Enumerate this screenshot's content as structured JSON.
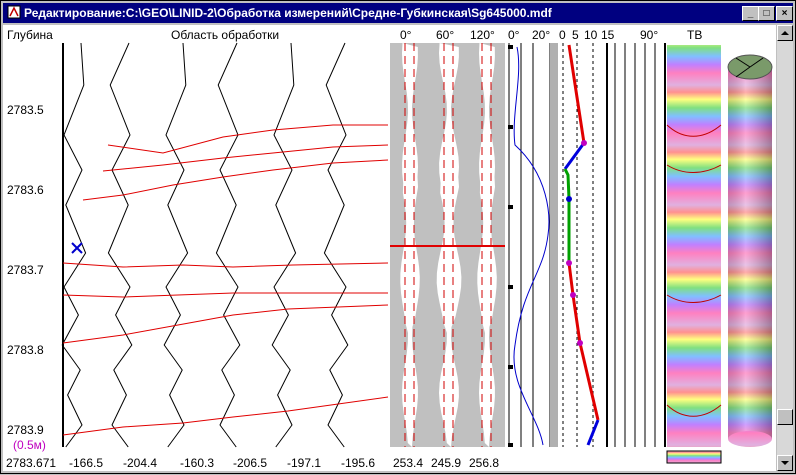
{
  "window": {
    "title": "Редактирование:C:\\GEO\\LINID-2\\Обработка измерений\\Средне-Губкинская\\Sg645000.mdf",
    "controls": {
      "minimize": "_",
      "maximize": "□",
      "close": "×"
    }
  },
  "headers": {
    "depth": "Глубина",
    "area": "Область обработки",
    "angles1": [
      "0°",
      "60°",
      "120°"
    ],
    "angles2": [
      "0°",
      "20°"
    ],
    "scale": [
      "0",
      "5",
      "10",
      "15"
    ],
    "angle90": "90°",
    "tv": "ТВ"
  },
  "depth_labels": [
    "2783.5",
    "2783.6",
    "2783.7",
    "2783.8",
    "2783.9"
  ],
  "scale_label": "(0.5м)",
  "bottom_values": [
    "2783.671",
    "-166.5",
    "-204.4",
    "-160.3",
    "-206.5",
    "-197.1",
    "-195.6",
    "253.4",
    "245.9",
    "256.8"
  ],
  "colors": {
    "title_bar": "#000080",
    "curve_lines": "#000000",
    "marker_lines": "#e00000",
    "cursor": "#0000cc",
    "scale_label": "#c000c0",
    "gray_band": "#c0c0c0",
    "dip_red": "#e00000",
    "dip_blue": "#0000cc",
    "dip_green": "#00a000"
  }
}
